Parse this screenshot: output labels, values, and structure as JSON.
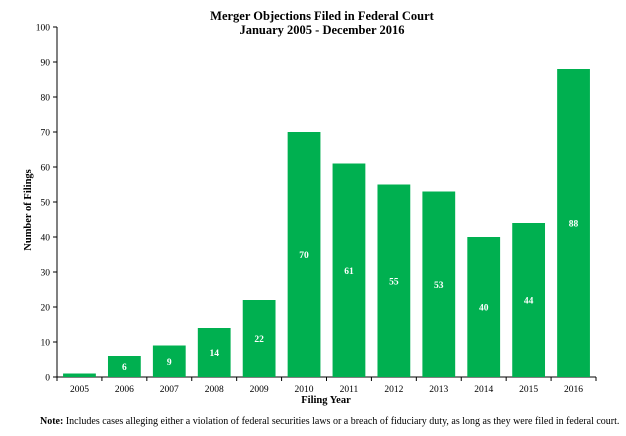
{
  "chart_data": {
    "type": "bar",
    "title": "Merger Objections Filed in Federal Court",
    "subtitle": "January 2005 - December 2016",
    "xlabel": "Filing Year",
    "ylabel": "Number of Filings",
    "categories": [
      "2005",
      "2006",
      "2007",
      "2008",
      "2009",
      "2010",
      "2011",
      "2012",
      "2013",
      "2014",
      "2015",
      "2016"
    ],
    "values": [
      1,
      6,
      9,
      14,
      22,
      70,
      61,
      55,
      53,
      40,
      44,
      88
    ],
    "data_labels": [
      "",
      "6",
      "9",
      "14",
      "22",
      "70",
      "61",
      "55",
      "53",
      "40",
      "44",
      "88"
    ],
    "ylim": [
      0,
      100
    ],
    "yticks": [
      0,
      10,
      20,
      30,
      40,
      50,
      60,
      70,
      80,
      90,
      100
    ],
    "grid": false,
    "bar_color": "#00b050"
  },
  "note": {
    "prefix": "Note:",
    "text": " Includes cases alleging either a violation of federal securities laws or a breach of fiduciary duty, as long as they were filed in federal court."
  }
}
